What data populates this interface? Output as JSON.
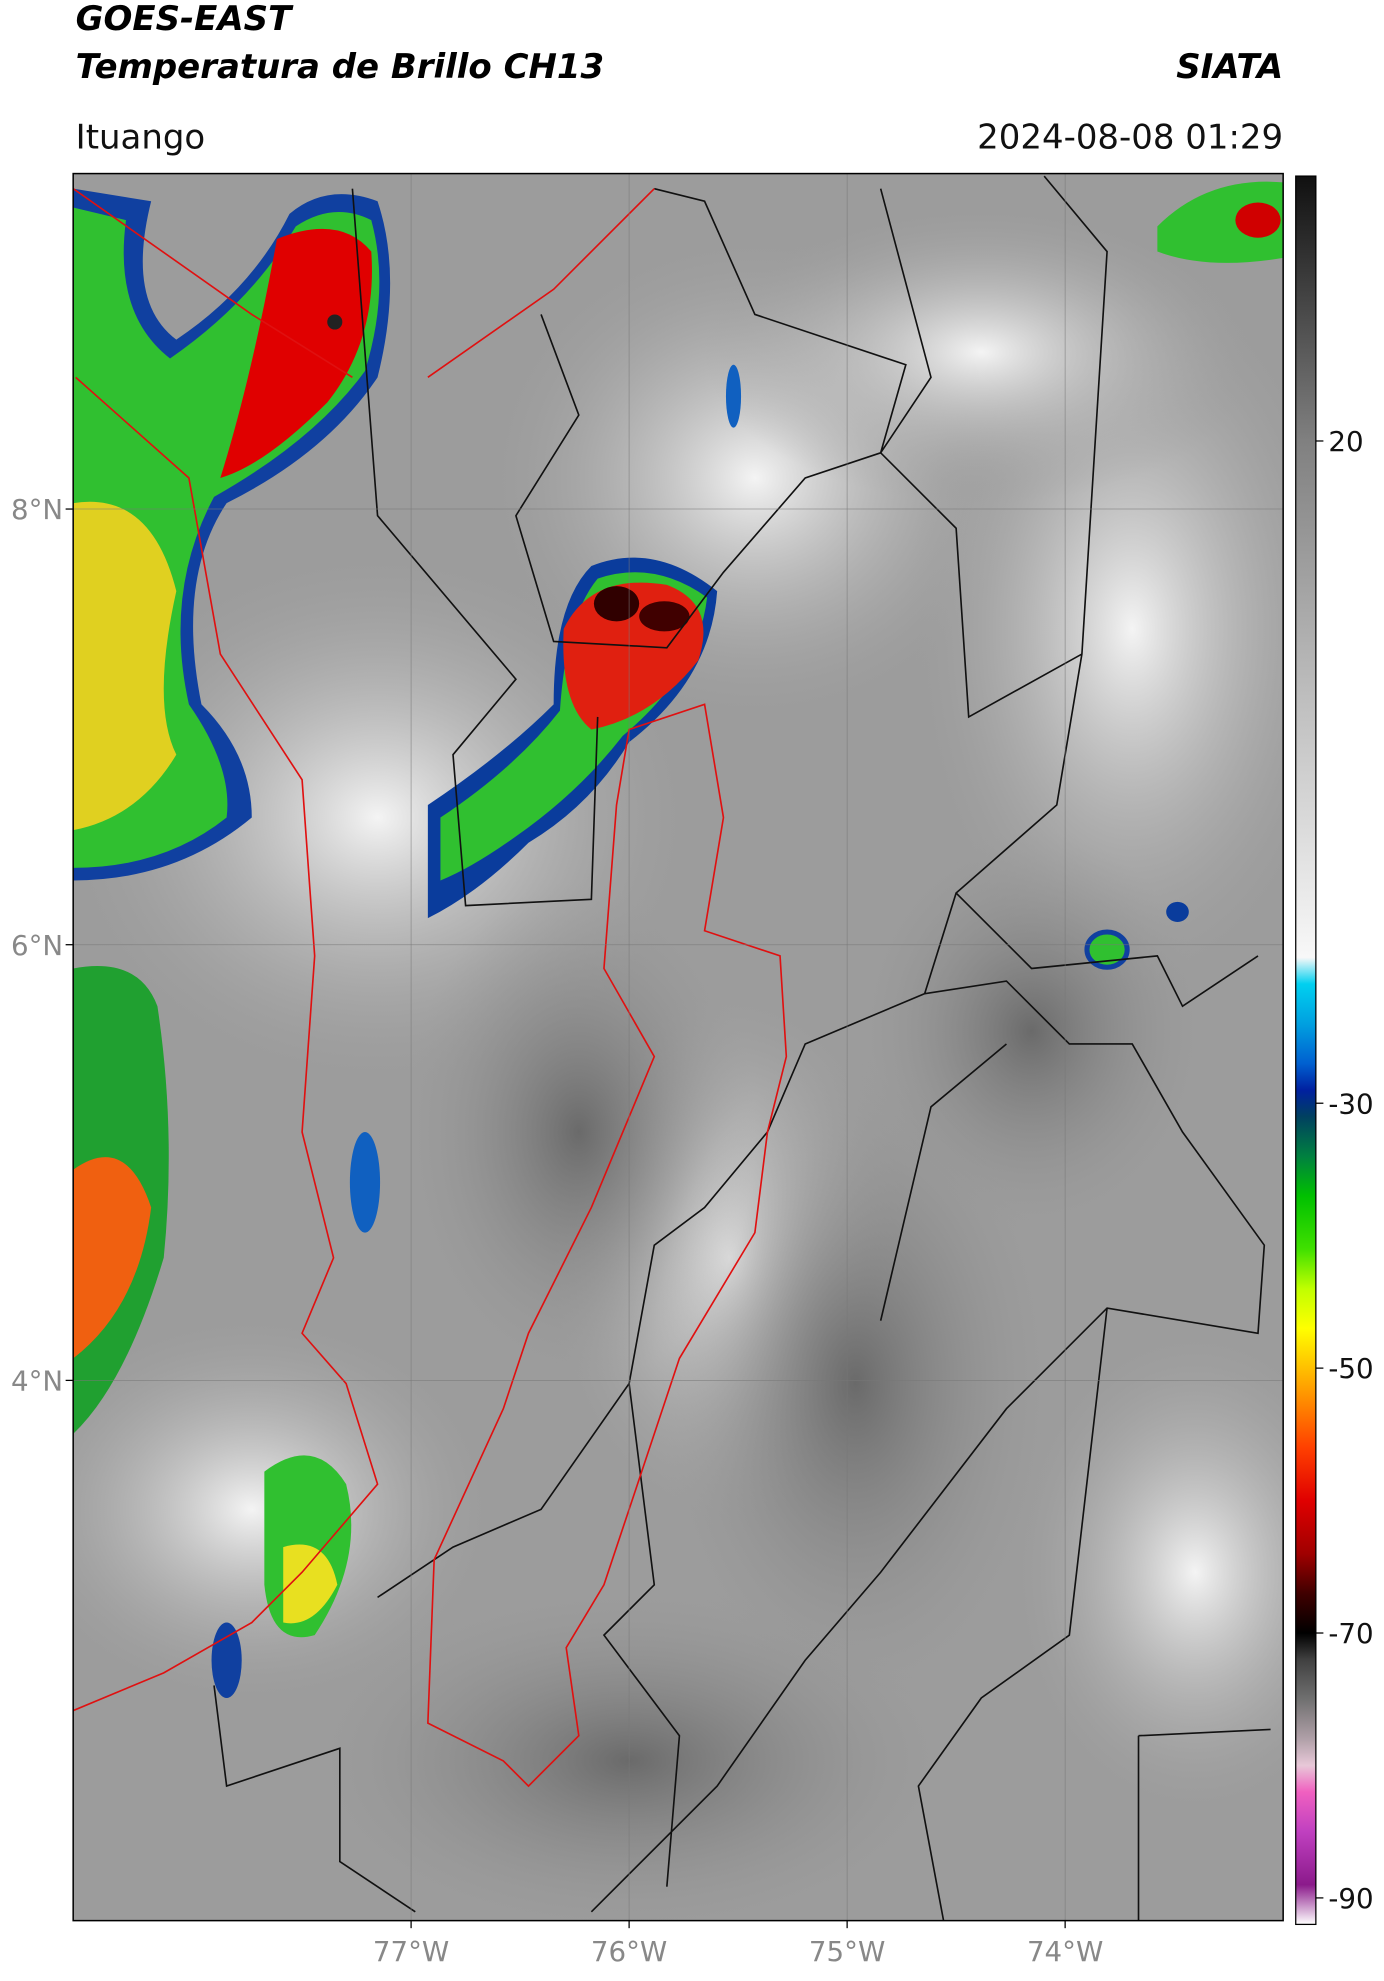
{
  "header": {
    "title": "GOES-EAST",
    "subtitle": "Temperatura de Brillo CH13",
    "source": "SIATA",
    "location": "Ituango",
    "datetime": "2024-08-08 01:29"
  },
  "map": {
    "xlim": [
      -78.55,
      -73.0
    ],
    "ylim": [
      1.52,
      9.54
    ],
    "xticks": [
      {
        "value": -77,
        "label": "77°W"
      },
      {
        "value": -76,
        "label": "76°W"
      },
      {
        "value": -75,
        "label": "75°W"
      },
      {
        "value": -74,
        "label": "74°W"
      }
    ],
    "yticks": [
      {
        "value": 4,
        "label": "4°N"
      },
      {
        "value": 6,
        "label": "6°N"
      },
      {
        "value": 8,
        "label": "8°N"
      }
    ],
    "grid": true
  },
  "colorbar": {
    "lim": [
      -92,
      40
    ],
    "ticks": [
      20,
      -30,
      -50,
      -70,
      -90
    ],
    "stops": [
      {
        "value": -92,
        "color": "#ffffff"
      },
      {
        "value": -89,
        "color": "#8b1a8b"
      },
      {
        "value": -85,
        "color": "#c040c0"
      },
      {
        "value": -82,
        "color": "#f060c0"
      },
      {
        "value": -80,
        "color": "#e8c8d8"
      },
      {
        "value": -78,
        "color": "#b0a0a8"
      },
      {
        "value": -75,
        "color": "#707070"
      },
      {
        "value": -72,
        "color": "#404040"
      },
      {
        "value": -70,
        "color": "#000000"
      },
      {
        "value": -67,
        "color": "#400000"
      },
      {
        "value": -64,
        "color": "#a00000"
      },
      {
        "value": -60,
        "color": "#e00000"
      },
      {
        "value": -56,
        "color": "#ff4000"
      },
      {
        "value": -53,
        "color": "#ff8000"
      },
      {
        "value": -50,
        "color": "#ffc000"
      },
      {
        "value": -47,
        "color": "#ffff00"
      },
      {
        "value": -44,
        "color": "#c0ff00"
      },
      {
        "value": -41,
        "color": "#40e000"
      },
      {
        "value": -37,
        "color": "#00c000"
      },
      {
        "value": -34,
        "color": "#008040"
      },
      {
        "value": -31,
        "color": "#004060"
      },
      {
        "value": -29,
        "color": "#0020a0"
      },
      {
        "value": -27,
        "color": "#0060d0"
      },
      {
        "value": -24,
        "color": "#00a0e0"
      },
      {
        "value": -21,
        "color": "#00d0f0"
      },
      {
        "value": -19,
        "color": "#f8f8f8"
      },
      {
        "value": 0,
        "color": "#c0c0c0"
      },
      {
        "value": 20,
        "color": "#808080"
      },
      {
        "value": 40,
        "color": "#101010"
      }
    ]
  }
}
